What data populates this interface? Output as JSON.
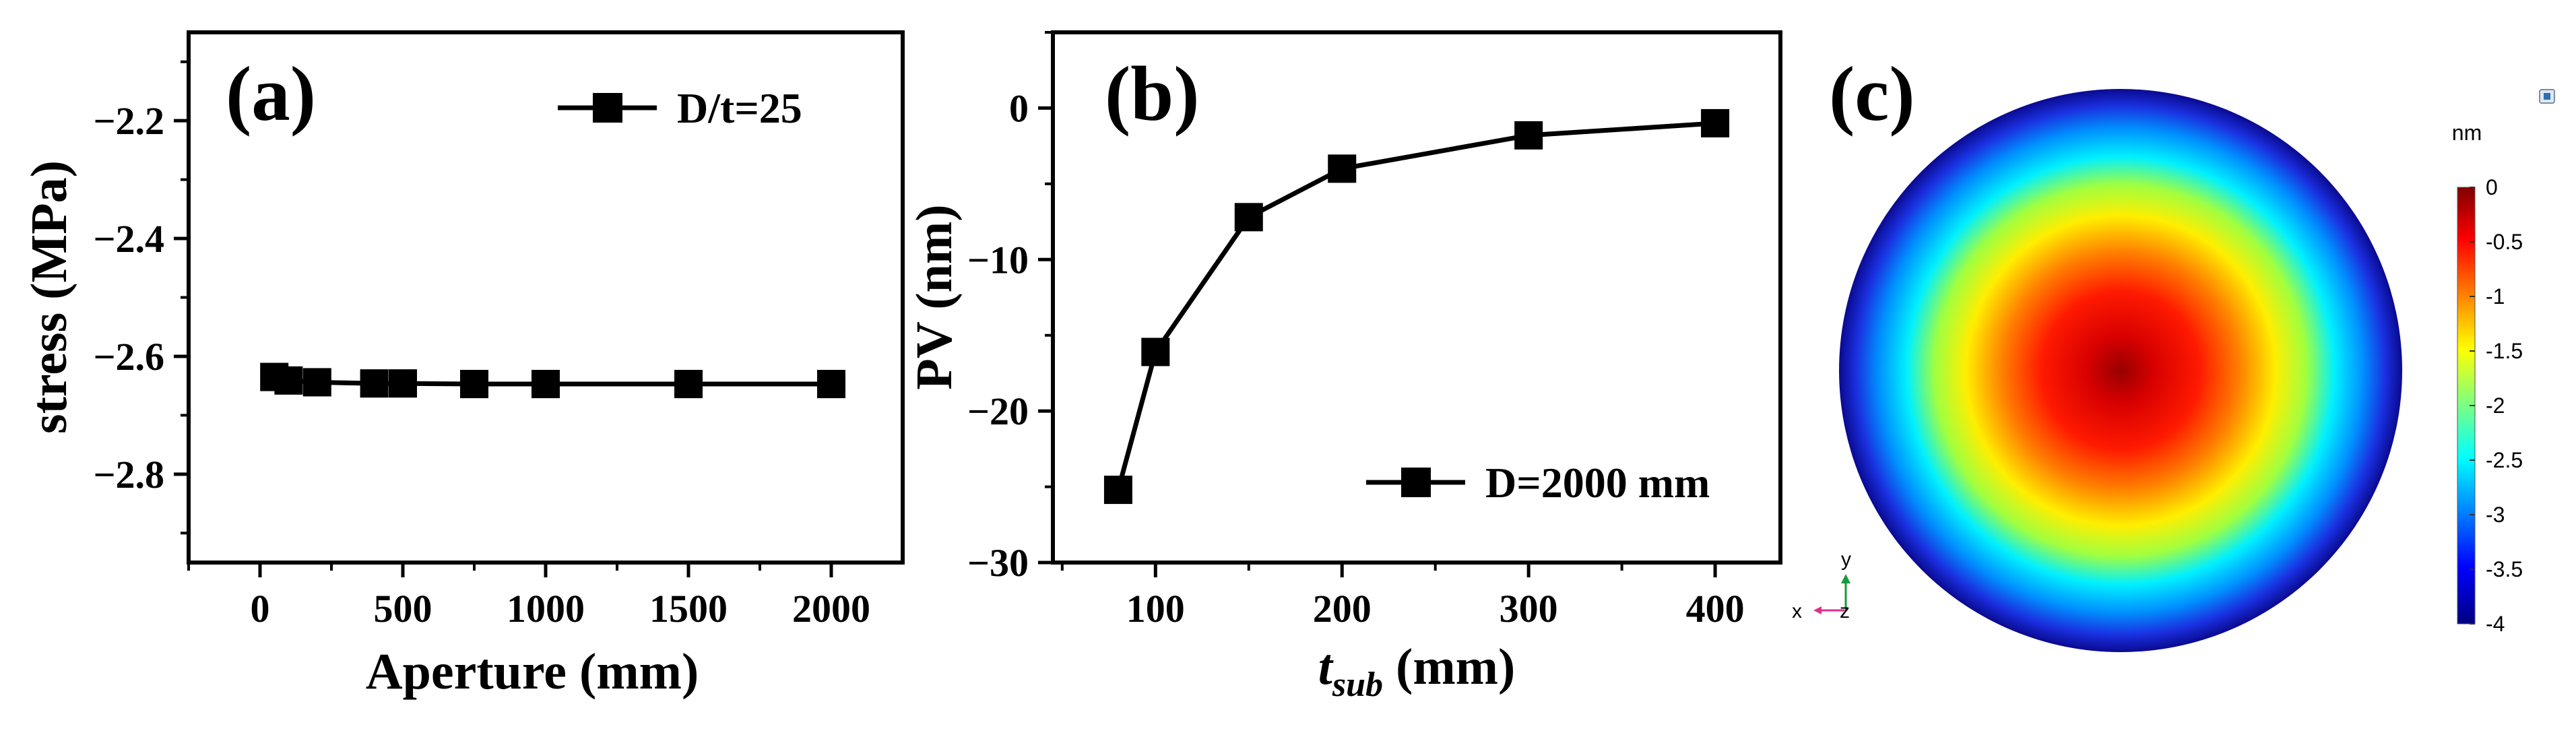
{
  "chart_data": [
    {
      "panel_label": "(a)",
      "type": "line",
      "xlabel": "Aperture (mm)",
      "ylabel": "stress (MPa)",
      "xlim": [
        -250,
        2250
      ],
      "ylim": [
        -2.95,
        -2.05
      ],
      "x_ticks": [
        0,
        500,
        1000,
        1500,
        2000
      ],
      "x_tick_labels": [
        "0",
        "500",
        "1000",
        "1500",
        "2000"
      ],
      "y_ticks": [
        -2.2,
        -2.4,
        -2.6,
        -2.8
      ],
      "y_tick_labels": [
        "−2.2",
        "−2.4",
        "−2.6",
        "−2.8"
      ],
      "grid": false,
      "legend_position": "top-right",
      "series": [
        {
          "name": "D/t=25",
          "marker": "square",
          "x": [
            50,
            100,
            200,
            400,
            500,
            750,
            1000,
            1500,
            2000
          ],
          "y": [
            -2.635,
            -2.641,
            -2.644,
            -2.646,
            -2.646,
            -2.647,
            -2.647,
            -2.647,
            -2.647
          ]
        }
      ]
    },
    {
      "panel_label": "(b)",
      "type": "line",
      "xlabel_main": "t",
      "xlabel_sub": "sub",
      "xlabel_unit": " (mm)",
      "ylabel": "PV (nm)",
      "xlim": [
        45,
        435
      ],
      "ylim": [
        -30,
        5
      ],
      "x_ticks": [
        100,
        200,
        300,
        400
      ],
      "x_tick_labels": [
        "100",
        "200",
        "300",
        "400"
      ],
      "y_ticks": [
        0,
        -10,
        -20,
        -30
      ],
      "y_tick_labels": [
        "0",
        "−10",
        "−20",
        "−30"
      ],
      "grid": false,
      "legend_position": "bottom-right",
      "series": [
        {
          "name": "D=2000 mm",
          "marker": "square",
          "x": [
            80,
            100,
            150,
            200,
            300,
            400
          ],
          "y": [
            -25.2,
            -16.1,
            -7.2,
            -4.0,
            -1.8,
            -1.0
          ]
        }
      ]
    },
    {
      "panel_label": "(c)",
      "type": "heatmap",
      "shape": "circular surface deformation map",
      "center_value": 0,
      "edge_value": -4,
      "colorbar": {
        "unit": "nm",
        "range": [
          -4,
          0
        ],
        "tick_labels": [
          "0",
          "-0.5",
          "-1",
          "-1.5",
          "-2",
          "-2.5",
          "-3",
          "-3.5",
          "-4"
        ],
        "colormap": [
          "#000080",
          "#0000ff",
          "#00ffff",
          "#ffff00",
          "#ff0000",
          "#800000"
        ]
      },
      "axis_triad": {
        "y": "y",
        "x": "x",
        "z": "z"
      }
    }
  ]
}
